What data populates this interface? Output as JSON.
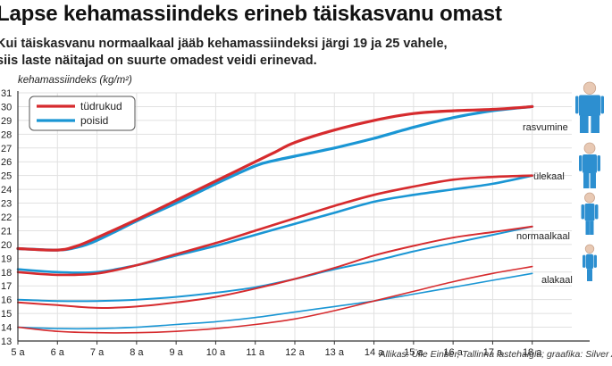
{
  "title": "Lapse kehamassiindeks erineb täiskasvanu omast",
  "subtitle": [
    "Kui täiskasvanu normaalkaal jääb kehamassiindeksi järgi 19 ja 25 vahele,",
    "siis laste näitajad on suurte omadest veidi erinevad."
  ],
  "source": "Allikas: Ülle Einber, Tallinna lastehaigla; graafika: Silver A",
  "colors": {
    "girls": "#d62b2e",
    "boys": "#1a96d4",
    "grid": "#e1e1e1",
    "figure": "#2d8fd0",
    "text": "#222222"
  },
  "chart_data": {
    "type": "line",
    "ylabel": "kehamassiindeks (kg/m²)",
    "ylim": [
      13,
      31
    ],
    "xlim": [
      5,
      19
    ],
    "x_ticks": [
      "5 a",
      "6 a",
      "7 a",
      "8 a",
      "9 a",
      "10 a",
      "11 a",
      "12 a",
      "13 a",
      "14 a",
      "15 a",
      "16 a",
      "17 a",
      "18 a"
    ],
    "y_ticks": [
      13,
      14,
      15,
      16,
      17,
      18,
      19,
      20,
      21,
      22,
      23,
      24,
      25,
      26,
      27,
      28,
      29,
      30,
      31
    ],
    "grid": true,
    "legend": {
      "position": "top-left",
      "entries": [
        {
          "name": "tüdrukud",
          "color": "#d62b2e"
        },
        {
          "name": "poisid",
          "color": "#1a96d4"
        }
      ]
    },
    "series": [
      {
        "name": "tüdrukud",
        "category": "rasvumine",
        "x": [
          5,
          6,
          6.5,
          7,
          8,
          9,
          10,
          11,
          11.5,
          12,
          13,
          14,
          15,
          16,
          17,
          18
        ],
        "y": [
          19.7,
          19.6,
          19.9,
          20.5,
          21.8,
          23.2,
          24.6,
          26.0,
          26.7,
          27.4,
          28.3,
          29.0,
          29.5,
          29.7,
          29.8,
          30.0
        ]
      },
      {
        "name": "poisid",
        "category": "rasvumine",
        "x": [
          5,
          6,
          6.5,
          7,
          8,
          9,
          10,
          11,
          11.5,
          12,
          13,
          14,
          15,
          16,
          17,
          18
        ],
        "y": [
          19.7,
          19.6,
          19.8,
          20.3,
          21.7,
          23.0,
          24.4,
          25.7,
          26.1,
          26.4,
          27.0,
          27.7,
          28.5,
          29.2,
          29.7,
          30.0
        ]
      },
      {
        "name": "tüdrukud",
        "category": "ülekaal",
        "x": [
          5,
          6,
          7,
          8,
          9,
          10,
          11,
          12,
          13,
          14,
          15,
          16,
          17,
          18
        ],
        "y": [
          18.0,
          17.8,
          17.9,
          18.5,
          19.3,
          20.1,
          21.0,
          21.9,
          22.8,
          23.6,
          24.2,
          24.7,
          24.9,
          25.0
        ]
      },
      {
        "name": "poisid",
        "category": "ülekaal",
        "x": [
          5,
          6,
          7,
          8,
          9,
          10,
          11,
          12,
          13,
          14,
          15,
          16,
          17,
          18
        ],
        "y": [
          18.2,
          18.0,
          18.0,
          18.5,
          19.2,
          19.9,
          20.7,
          21.5,
          22.3,
          23.1,
          23.6,
          24.0,
          24.4,
          25.0
        ]
      },
      {
        "name": "tüdrukud",
        "category": "normaalkaal",
        "x": [
          5,
          6,
          7,
          8,
          9,
          10,
          11,
          12,
          13,
          14,
          15,
          16,
          17,
          18
        ],
        "y": [
          15.8,
          15.6,
          15.4,
          15.5,
          15.8,
          16.2,
          16.8,
          17.5,
          18.3,
          19.2,
          19.9,
          20.5,
          20.9,
          21.3
        ]
      },
      {
        "name": "poisid",
        "category": "normaalkaal",
        "x": [
          5,
          6,
          7,
          8,
          9,
          10,
          11,
          12,
          13,
          14,
          15,
          16,
          17,
          18
        ],
        "y": [
          16.0,
          15.9,
          15.9,
          16.0,
          16.2,
          16.5,
          16.9,
          17.5,
          18.2,
          18.8,
          19.5,
          20.1,
          20.7,
          21.3
        ]
      },
      {
        "name": "tüdrukud",
        "category": "alakaal",
        "x": [
          5,
          6,
          7,
          8,
          9,
          10,
          11,
          12,
          13,
          14,
          15,
          16,
          17,
          18
        ],
        "y": [
          14.0,
          13.7,
          13.6,
          13.6,
          13.7,
          13.9,
          14.2,
          14.6,
          15.2,
          15.9,
          16.6,
          17.3,
          17.9,
          18.4
        ]
      },
      {
        "name": "poisid",
        "category": "alakaal",
        "x": [
          5,
          6,
          7,
          8,
          9,
          10,
          11,
          12,
          13,
          14,
          15,
          16,
          17,
          18
        ],
        "y": [
          14.0,
          13.9,
          13.9,
          14.0,
          14.2,
          14.4,
          14.7,
          15.1,
          15.5,
          15.9,
          16.4,
          16.9,
          17.4,
          17.9
        ]
      }
    ],
    "annotations": [
      {
        "text": "rasvumine",
        "y": 30.0
      },
      {
        "text": "ülekaal",
        "y": 25.0
      },
      {
        "text": "normaalkaal",
        "y": 21.3
      },
      {
        "text": "alakaal",
        "y": 18.2
      }
    ]
  }
}
